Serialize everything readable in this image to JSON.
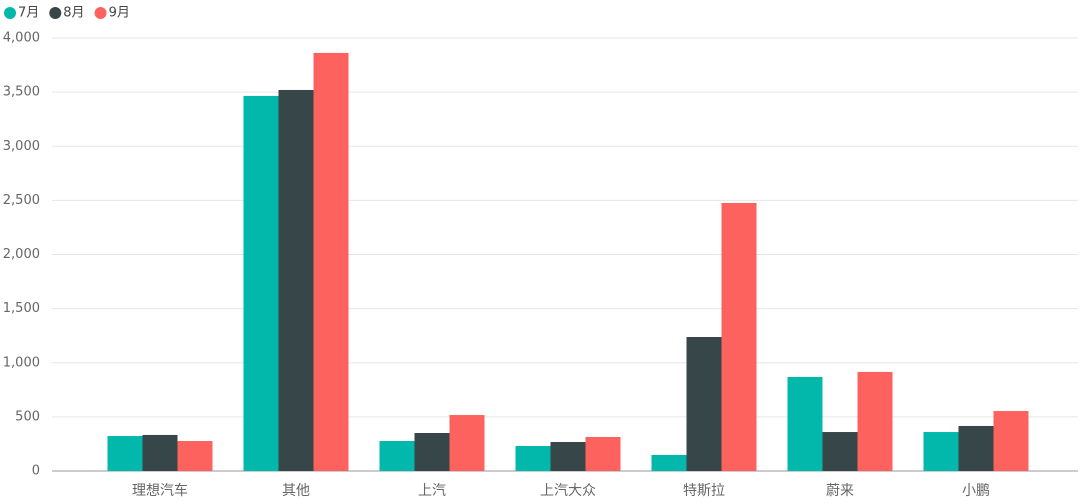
{
  "chart_data": {
    "type": "bar",
    "categories": [
      "理想汽车",
      "其他",
      "上汽",
      "上汽大众",
      "特斯拉",
      "蔚来",
      "小鹏"
    ],
    "series": [
      {
        "name": "7月",
        "color": "#01b8aa",
        "values": [
          323,
          3465,
          277,
          231,
          148,
          869,
          360
        ]
      },
      {
        "name": "8月",
        "color": "#374649",
        "values": [
          333,
          3520,
          351,
          268,
          1238,
          360,
          416
        ]
      },
      {
        "name": "9月",
        "color": "#fd625e",
        "values": [
          277,
          3862,
          517,
          314,
          2476,
          915,
          554
        ]
      }
    ],
    "ylim": [
      0,
      4000
    ],
    "yticks": [
      0,
      500,
      {
        "value": 1000,
        "label": "1,000"
      },
      {
        "value": 1500,
        "label": "1,500"
      },
      {
        "value": 2000,
        "label": "2,000"
      },
      {
        "value": 2500,
        "label": "2,500"
      },
      {
        "value": 3000,
        "label": "3,000"
      },
      {
        "value": 3500,
        "label": "3,500"
      },
      {
        "value": 4000,
        "label": "4,000"
      }
    ],
    "grid": true,
    "legend": "top-left"
  }
}
